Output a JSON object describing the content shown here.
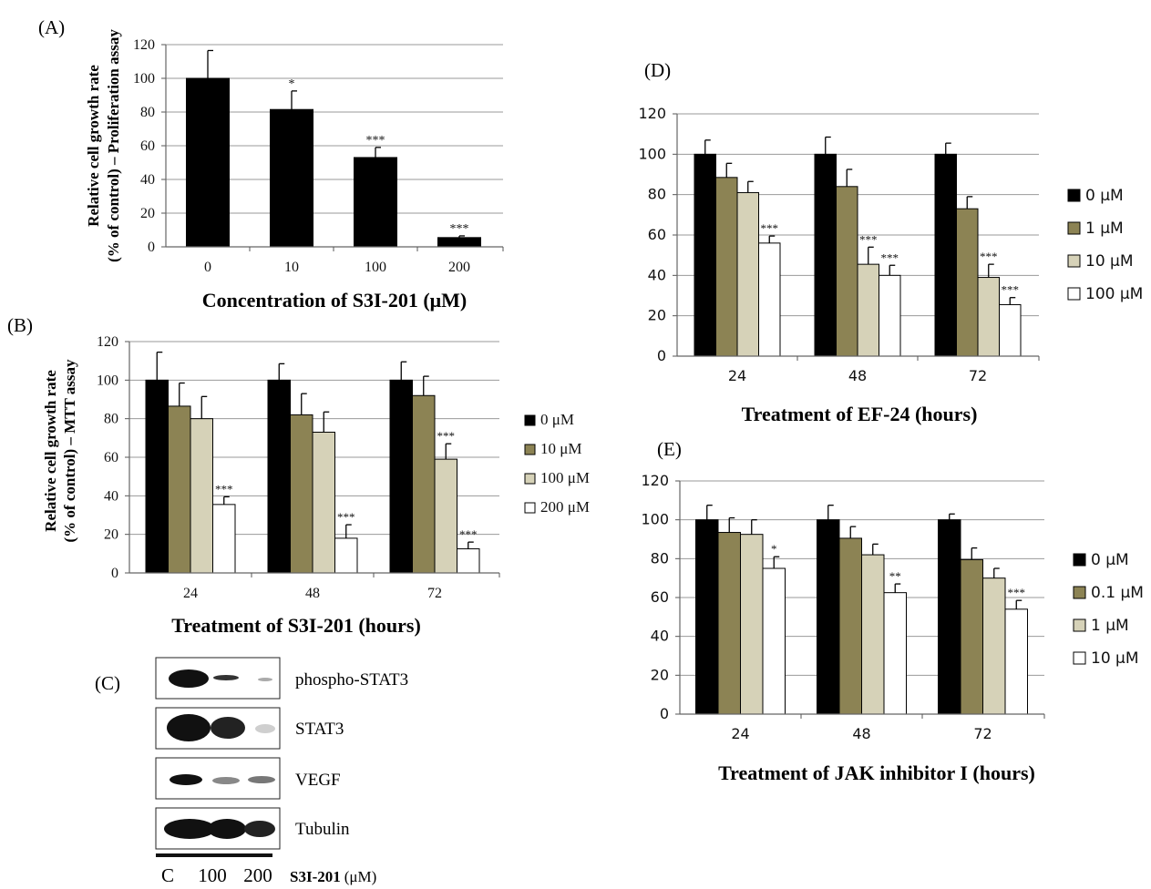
{
  "panels": {
    "A": {
      "label": "(A)",
      "chart_data": {
        "type": "bar",
        "categories": [
          "0",
          "10",
          "100",
          "200"
        ],
        "values": [
          100,
          81.5,
          53,
          5.5
        ],
        "errors": [
          16.5,
          11,
          6,
          1
        ],
        "significance": [
          "",
          "*",
          "***",
          "***"
        ],
        "xlabel": "Concentration of S3I-201 (μM)",
        "ylabel_lines": [
          "Relative cell growth rate",
          "(% of control) – Proliferation assay"
        ],
        "ylim": [
          0,
          120
        ],
        "yticks": [
          0,
          20,
          40,
          60,
          80,
          100,
          120
        ],
        "grid": true,
        "colors": [
          "#000000"
        ]
      }
    },
    "B": {
      "label": "(B)",
      "chart_data": {
        "type": "bar",
        "categories": [
          "24",
          "48",
          "72"
        ],
        "series": [
          {
            "name": "0 μM",
            "values": [
              100,
              100,
              100
            ],
            "errors": [
              14.5,
              8.5,
              9.5
            ],
            "sig": [
              "",
              "",
              ""
            ]
          },
          {
            "name": "10 μM",
            "values": [
              86.5,
              82,
              92
            ],
            "errors": [
              12,
              11,
              10
            ],
            "sig": [
              "",
              "",
              ""
            ]
          },
          {
            "name": "100 μM",
            "values": [
              80,
              73,
              59
            ],
            "errors": [
              11.5,
              10.5,
              8
            ],
            "sig": [
              "",
              "",
              "***"
            ]
          },
          {
            "name": "200 μM",
            "values": [
              35.5,
              18,
              12.5
            ],
            "errors": [
              4,
              7,
              3.5
            ],
            "sig": [
              "***",
              "***",
              "***"
            ]
          }
        ],
        "xlabel": "Treatment of S3I-201 (hours)",
        "ylabel_lines": [
          "Relative cell growth rate",
          "(% of control) – MTT assay"
        ],
        "ylim": [
          0,
          120
        ],
        "yticks": [
          0,
          20,
          40,
          60,
          80,
          100,
          120
        ],
        "grid": true,
        "legend": "right",
        "colors": [
          "#000000",
          "#8c8354",
          "#d6d2b8",
          "#ffffff"
        ]
      }
    },
    "C": {
      "label": "(C)",
      "blot": {
        "bands": [
          "phospho-STAT3",
          "STAT3",
          "VEGF",
          "Tubulin"
        ],
        "lanes": [
          "C",
          "100",
          "200"
        ],
        "treatment": "S3I-201",
        "unit": "(μM)"
      }
    },
    "D": {
      "label": "(D)",
      "chart_data": {
        "type": "bar",
        "categories": [
          "24",
          "48",
          "72"
        ],
        "series": [
          {
            "name": "0 μM",
            "values": [
              100,
              100,
              100
            ],
            "errors": [
              7,
              8.5,
              5.5
            ],
            "sig": [
              "",
              "",
              ""
            ]
          },
          {
            "name": "1 μM",
            "values": [
              88.5,
              84,
              73
            ],
            "errors": [
              7,
              8.5,
              6
            ],
            "sig": [
              "",
              "",
              ""
            ]
          },
          {
            "name": "10 μM",
            "values": [
              81,
              45.5,
              39
            ],
            "errors": [
              5.5,
              8.5,
              6.5
            ],
            "sig": [
              "",
              "***",
              "***"
            ]
          },
          {
            "name": "100 μM",
            "values": [
              56,
              40,
              25.5
            ],
            "errors": [
              3.5,
              5,
              3.5
            ],
            "sig": [
              "***",
              "***",
              "***"
            ]
          }
        ],
        "xlabel": "Treatment of EF-24 (hours)",
        "ylim": [
          0,
          120
        ],
        "yticks": [
          0,
          20,
          40,
          60,
          80,
          100,
          120
        ],
        "grid": true,
        "legend": "right",
        "colors": [
          "#000000",
          "#8c8354",
          "#d6d2b8",
          "#ffffff"
        ]
      }
    },
    "E": {
      "label": "(E)",
      "chart_data": {
        "type": "bar",
        "categories": [
          "24",
          "48",
          "72"
        ],
        "series": [
          {
            "name": "0 μM",
            "values": [
              100,
              100,
              100
            ],
            "errors": [
              7.5,
              7.5,
              3
            ],
            "sig": [
              "",
              "",
              ""
            ]
          },
          {
            "name": "0.1 μM",
            "values": [
              93.5,
              90.5,
              79.5
            ],
            "errors": [
              7.5,
              6,
              6
            ],
            "sig": [
              "",
              "",
              ""
            ]
          },
          {
            "name": "1 μM",
            "values": [
              92.5,
              82,
              70
            ],
            "errors": [
              7.5,
              5.5,
              5
            ],
            "sig": [
              "",
              "",
              ""
            ]
          },
          {
            "name": "10 μM",
            "values": [
              75,
              62.5,
              54
            ],
            "errors": [
              6,
              4.5,
              4.5
            ],
            "sig": [
              "*",
              "**",
              "***"
            ]
          }
        ],
        "xlabel": "Treatment of JAK inhibitor I (hours)",
        "ylim": [
          0,
          120
        ],
        "yticks": [
          0,
          20,
          40,
          60,
          80,
          100,
          120
        ],
        "grid": true,
        "legend": "right",
        "colors": [
          "#000000",
          "#8c8354",
          "#d6d2b8",
          "#ffffff"
        ]
      }
    }
  }
}
